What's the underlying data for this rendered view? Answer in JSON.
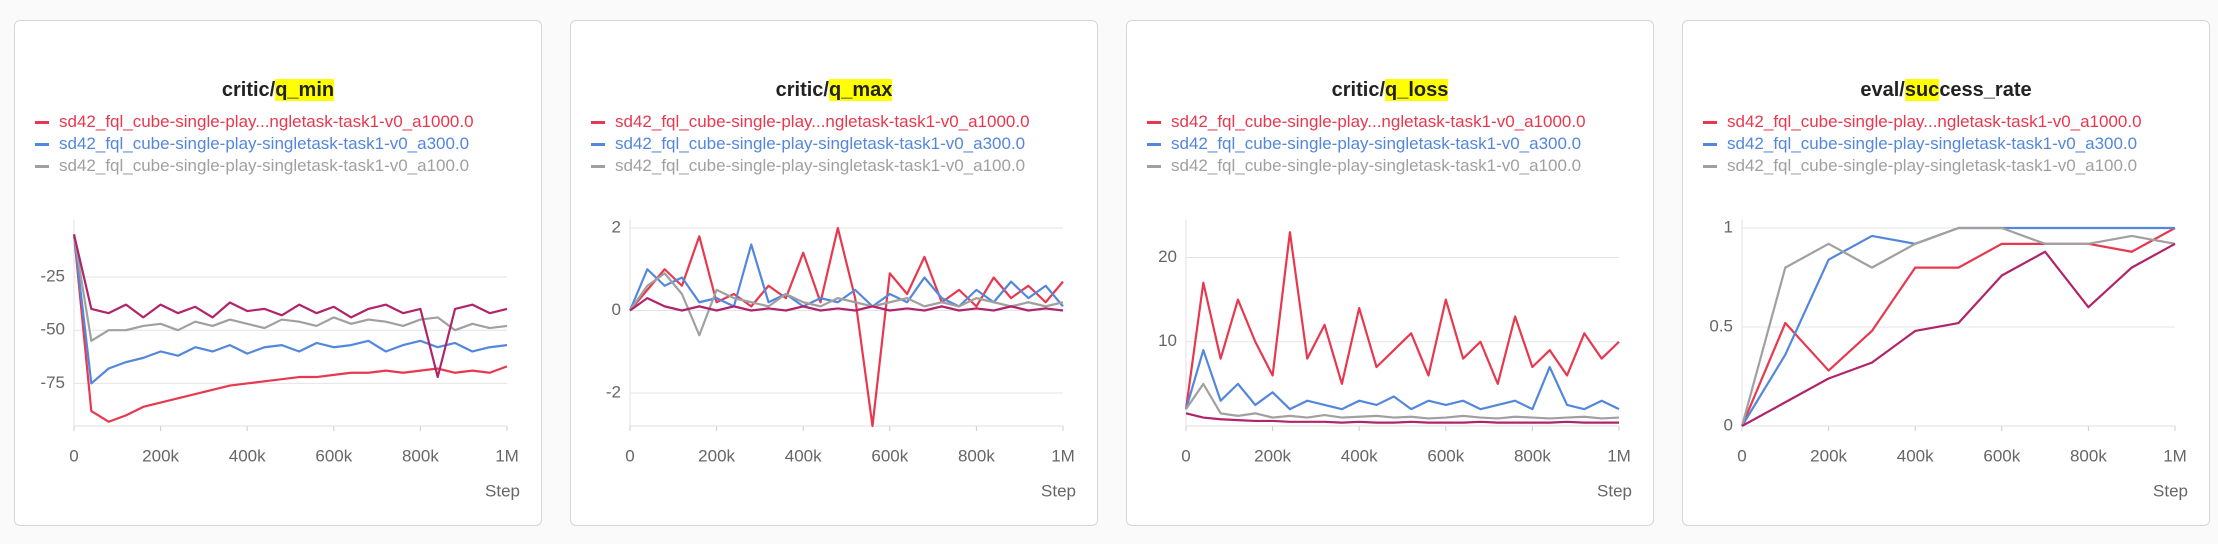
{
  "chart_data": [
    {
      "type": "line",
      "title_parts": [
        {
          "text": "critic/"
        },
        {
          "text": "q_min",
          "highlight": true
        }
      ],
      "xlabel": "Step",
      "x": [
        0,
        40000,
        80000,
        120000,
        160000,
        200000,
        240000,
        280000,
        320000,
        360000,
        400000,
        440000,
        480000,
        520000,
        560000,
        600000,
        640000,
        680000,
        720000,
        760000,
        800000,
        840000,
        880000,
        920000,
        960000,
        1000000
      ],
      "xlim": [
        0,
        1000000
      ],
      "xticks": [
        0,
        {
          "value": 200000,
          "label": "200k"
        },
        {
          "value": 400000,
          "label": "400k"
        },
        {
          "value": 600000,
          "label": "600k"
        },
        {
          "value": 800000,
          "label": "800k"
        },
        {
          "value": 1000000,
          "label": "1M"
        }
      ],
      "ylim": [
        -95,
        -2
      ],
      "yticks": [
        -25,
        -50,
        -75
      ],
      "grid": true,
      "series": [
        {
          "name": "sd42_fql_cube-single-play...ngletask-task1-v0_a1000.0",
          "color": "#e8384f",
          "values": [
            -5,
            -88,
            -93,
            -90,
            -86,
            -84,
            -82,
            -80,
            -78,
            -76,
            -75,
            -74,
            -73,
            -72,
            -72,
            -71,
            -70,
            -70,
            -69,
            -70,
            -69,
            -68,
            -70,
            -69,
            -70,
            -67
          ]
        },
        {
          "name": "sd42_fql_cube-single-play-singletask-task1-v0_a300.0",
          "color": "#5387dd",
          "values": [
            -5,
            -75,
            -68,
            -65,
            -63,
            -60,
            -62,
            -58,
            -60,
            -57,
            -61,
            -58,
            -57,
            -60,
            -56,
            -58,
            -57,
            -55,
            -60,
            -57,
            -55,
            -58,
            -56,
            -60,
            -58,
            -57
          ]
        },
        {
          "name": "sd42_fql_cube-single-play-singletask-task1-v0_a100.0",
          "color": "#a0a0a0",
          "values": [
            -5,
            -55,
            -50,
            -50,
            -48,
            -47,
            -50,
            -46,
            -48,
            -45,
            -47,
            -49,
            -45,
            -46,
            -48,
            -44,
            -47,
            -45,
            -46,
            -48,
            -45,
            -44,
            -50,
            -47,
            -49,
            -48
          ]
        },
        {
          "color": "#b0246a",
          "values": [
            -5,
            -40,
            -42,
            -38,
            -44,
            -38,
            -42,
            -39,
            -44,
            -37,
            -41,
            -40,
            -43,
            -38,
            -42,
            -39,
            -44,
            -40,
            -38,
            -42,
            -40,
            -72,
            -40,
            -38,
            -42,
            -40
          ]
        }
      ]
    },
    {
      "type": "line",
      "title_parts": [
        {
          "text": "critic/"
        },
        {
          "text": "q_max",
          "highlight": true
        }
      ],
      "xlabel": "Step",
      "x": [
        0,
        40000,
        80000,
        120000,
        160000,
        200000,
        240000,
        280000,
        320000,
        360000,
        400000,
        440000,
        480000,
        520000,
        560000,
        600000,
        640000,
        680000,
        720000,
        760000,
        800000,
        840000,
        880000,
        920000,
        960000,
        1000000
      ],
      "xlim": [
        0,
        1000000
      ],
      "xticks": [
        0,
        {
          "value": 200000,
          "label": "200k"
        },
        {
          "value": 400000,
          "label": "400k"
        },
        {
          "value": 600000,
          "label": "600k"
        },
        {
          "value": 800000,
          "label": "800k"
        },
        {
          "value": 1000000,
          "label": "1M"
        }
      ],
      "ylim": [
        -2.8,
        2
      ],
      "yticks": [
        2,
        0,
        -2
      ],
      "grid": true,
      "series": [
        {
          "name": "sd42_fql_cube-single-play...ngletask-task1-v0_a1000.0",
          "color": "#e8384f",
          "values": [
            0,
            0.5,
            1.0,
            0.6,
            1.8,
            0.2,
            0.4,
            0.1,
            0.6,
            0.3,
            1.4,
            0.2,
            2.0,
            0.3,
            -2.8,
            0.9,
            0.4,
            1.3,
            0.2,
            0.5,
            0.1,
            0.8,
            0.3,
            0.6,
            0.2,
            0.7
          ]
        },
        {
          "name": "sd42_fql_cube-single-play-singletask-task1-v0_a300.0",
          "color": "#5387dd",
          "values": [
            0,
            1.0,
            0.6,
            0.8,
            0.2,
            0.3,
            0.1,
            1.6,
            0.2,
            0.4,
            0.1,
            0.3,
            0.2,
            0.5,
            0.1,
            0.4,
            0.2,
            0.8,
            0.3,
            0.1,
            0.5,
            0.2,
            0.7,
            0.3,
            0.6,
            0.1
          ]
        },
        {
          "name": "sd42_fql_cube-single-play-singletask-task1-v0_a100.0",
          "color": "#a0a0a0",
          "values": [
            0,
            0.6,
            0.9,
            0.4,
            -0.6,
            0.5,
            0.3,
            0.2,
            0.1,
            0.4,
            0.2,
            0.1,
            0.3,
            0.2,
            0.1,
            0.2,
            0.3,
            0.1,
            0.2,
            0.1,
            0.3,
            0.2,
            0.1,
            0.2,
            0.1,
            0.2
          ]
        },
        {
          "color": "#b0246a",
          "values": [
            0,
            0.3,
            0.1,
            0,
            0.1,
            0,
            0.1,
            0,
            0.05,
            0,
            0.1,
            0,
            0.05,
            0,
            0.1,
            0,
            0.05,
            0,
            0.1,
            0,
            0.05,
            0,
            0.1,
            0,
            0.05,
            0
          ]
        }
      ]
    },
    {
      "type": "line",
      "title_parts": [
        {
          "text": "critic/"
        },
        {
          "text": "q_loss",
          "highlight": true
        }
      ],
      "xlabel": "Step",
      "x": [
        0,
        40000,
        80000,
        120000,
        160000,
        200000,
        240000,
        280000,
        320000,
        360000,
        400000,
        440000,
        480000,
        520000,
        560000,
        600000,
        640000,
        680000,
        720000,
        760000,
        800000,
        840000,
        880000,
        920000,
        960000,
        1000000
      ],
      "xlim": [
        0,
        1000000
      ],
      "xticks": [
        0,
        {
          "value": 200000,
          "label": "200k"
        },
        {
          "value": 400000,
          "label": "400k"
        },
        {
          "value": 600000,
          "label": "600k"
        },
        {
          "value": 800000,
          "label": "800k"
        },
        {
          "value": 1000000,
          "label": "1M"
        }
      ],
      "ylim": [
        0,
        23.5
      ],
      "yticks": [
        20,
        10
      ],
      "grid": true,
      "series": [
        {
          "name": "sd42_fql_cube-single-play...ngletask-task1-v0_a1000.0",
          "color": "#e8384f",
          "values": [
            2,
            17,
            8,
            15,
            10,
            6,
            23,
            8,
            12,
            5,
            14,
            7,
            9,
            11,
            6,
            15,
            8,
            10,
            5,
            13,
            7,
            9,
            6,
            11,
            8,
            10
          ]
        },
        {
          "name": "sd42_fql_cube-single-play-singletask-task1-v0_a300.0",
          "color": "#5387dd",
          "values": [
            2,
            9,
            3,
            5,
            2.5,
            4,
            2,
            3,
            2.5,
            2,
            3,
            2.5,
            3.5,
            2,
            3,
            2.5,
            3,
            2,
            2.5,
            3,
            2,
            7,
            2.5,
            2,
            3,
            2
          ]
        },
        {
          "name": "sd42_fql_cube-single-play-singletask-task1-v0_a100.0",
          "color": "#a0a0a0",
          "values": [
            2,
            5,
            1.5,
            1.2,
            1.5,
            1,
            1.2,
            1,
            1.3,
            1,
            1.1,
            1.2,
            1,
            1.1,
            0.9,
            1,
            1.2,
            1,
            0.9,
            1.1,
            1,
            0.9,
            1,
            1.1,
            0.9,
            1
          ]
        },
        {
          "color": "#b0246a",
          "values": [
            1.5,
            1,
            0.8,
            0.7,
            0.6,
            0.6,
            0.5,
            0.5,
            0.5,
            0.4,
            0.5,
            0.4,
            0.4,
            0.5,
            0.4,
            0.4,
            0.4,
            0.5,
            0.4,
            0.4,
            0.4,
            0.4,
            0.5,
            0.4,
            0.4,
            0.4
          ]
        }
      ]
    },
    {
      "type": "line",
      "title_parts": [
        {
          "text": "eval/"
        },
        {
          "text": "suc",
          "highlight": true
        },
        {
          "text": "cess_rate"
        }
      ],
      "xlabel": "Step",
      "x": [
        0,
        100000,
        200000,
        300000,
        400000,
        500000,
        600000,
        700000,
        800000,
        900000,
        1000000
      ],
      "xlim": [
        0,
        1000000
      ],
      "xticks": [
        0,
        {
          "value": 200000,
          "label": "200k"
        },
        {
          "value": 400000,
          "label": "400k"
        },
        {
          "value": 600000,
          "label": "600k"
        },
        {
          "value": 800000,
          "label": "800k"
        },
        {
          "value": 1000000,
          "label": "1M"
        }
      ],
      "ylim": [
        0,
        1
      ],
      "yticks": [
        1,
        0.5,
        0
      ],
      "grid": true,
      "series": [
        {
          "name": "sd42_fql_cube-single-play...ngletask-task1-v0_a1000.0",
          "color": "#e8384f",
          "values": [
            0,
            0.52,
            0.28,
            0.48,
            0.8,
            0.8,
            0.92,
            0.92,
            0.92,
            0.88,
            1.0
          ]
        },
        {
          "name": "sd42_fql_cube-single-play-singletask-task1-v0_a300.0",
          "color": "#5387dd",
          "values": [
            0,
            0.36,
            0.84,
            0.96,
            0.92,
            1,
            1,
            1,
            1,
            1,
            1
          ]
        },
        {
          "name": "sd42_fql_cube-single-play-singletask-task1-v0_a100.0",
          "color": "#a0a0a0",
          "values": [
            0,
            0.8,
            0.92,
            0.8,
            0.92,
            1,
            1,
            0.92,
            0.92,
            0.96,
            0.92
          ]
        },
        {
          "color": "#b0246a",
          "values": [
            0,
            0.12,
            0.24,
            0.32,
            0.48,
            0.52,
            0.76,
            0.88,
            0.6,
            0.8,
            0.92
          ]
        }
      ]
    }
  ]
}
